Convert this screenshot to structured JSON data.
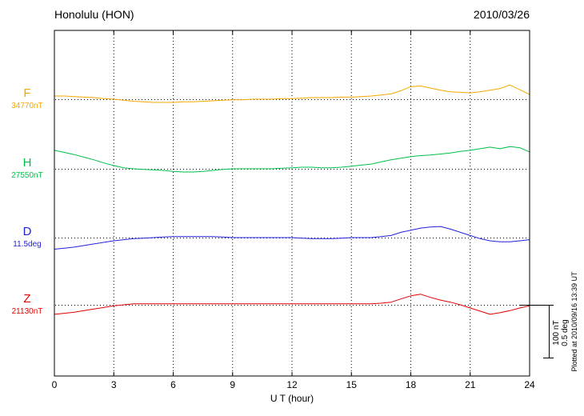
{
  "header": {
    "title": "Honolulu (HON)",
    "date": "2010/03/26"
  },
  "axis": {
    "xlabel": "U T (hour)",
    "ticks": [
      "0",
      "3",
      "6",
      "9",
      "12",
      "15",
      "18",
      "21",
      "24"
    ]
  },
  "channels": [
    {
      "name": "F",
      "value_label": "34770nT",
      "color": "#f5a800"
    },
    {
      "name": "H",
      "value_label": "27550nT",
      "color": "#00c04a"
    },
    {
      "name": "D",
      "value_label": "11.5deg",
      "color": "#2222dd"
    },
    {
      "name": "Z",
      "value_label": "21130nT",
      "color": "#e00000"
    }
  ],
  "scalebar": {
    "label_nT": "100 nT",
    "label_deg": "0.5 deg"
  },
  "footer": {
    "plotted_at": "Plotted at 2010/09/16 13:39 UT"
  },
  "chart_data": {
    "type": "line",
    "title": "Honolulu (HON) magnetogram 2010/03/26",
    "xlabel": "U T (hour)",
    "x_range": [
      0,
      24
    ],
    "x_tick_hours": [
      0,
      3,
      6,
      9,
      12,
      15,
      18,
      21,
      24
    ],
    "x_step_hours": 0.5,
    "scale_reference": {
      "nT_per_bar": 100,
      "deg_per_bar": 0.5
    },
    "series": [
      {
        "name": "F",
        "unit": "nT",
        "baseline_value": 34770,
        "color": "#f5a800",
        "offsets": [
          6,
          6,
          5,
          4,
          3,
          1,
          0,
          -2,
          -4,
          -5,
          -6,
          -6,
          -6,
          -5,
          -5,
          -4,
          -3,
          -2,
          -1,
          -1,
          0,
          0,
          0,
          1,
          1,
          2,
          3,
          3,
          3,
          4,
          4,
          5,
          6,
          8,
          10,
          16,
          24,
          25,
          21,
          17,
          14,
          13,
          12,
          14,
          17,
          20,
          27,
          18,
          9
        ]
      },
      {
        "name": "H",
        "unit": "nT",
        "baseline_value": 27550,
        "color": "#00c04a",
        "offsets": [
          35,
          31,
          27,
          22,
          17,
          11,
          6,
          2,
          0,
          -1,
          -2,
          -3,
          -5,
          -6,
          -6,
          -5,
          -3,
          -1,
          0,
          0,
          0,
          0,
          0,
          1,
          2,
          3,
          3,
          2,
          2,
          3,
          5,
          7,
          9,
          13,
          17,
          20,
          23,
          25,
          26,
          28,
          30,
          33,
          35,
          38,
          41,
          38,
          42,
          40,
          32
        ]
      },
      {
        "name": "D",
        "unit": "deg",
        "baseline_value": 11.5,
        "color": "#2222dd",
        "offsets": [
          -0.11,
          -0.1,
          -0.09,
          -0.075,
          -0.06,
          -0.045,
          -0.03,
          -0.02,
          -0.01,
          -0.005,
          0,
          0.005,
          0.01,
          0.01,
          0.01,
          0.01,
          0.01,
          0.005,
          0,
          0,
          0,
          0,
          0,
          0,
          0,
          -0.005,
          -0.01,
          -0.01,
          -0.01,
          -0.005,
          0,
          0,
          0,
          0.01,
          0.02,
          0.05,
          0.07,
          0.09,
          0.1,
          0.105,
          0.08,
          0.05,
          0.02,
          -0.01,
          -0.03,
          -0.04,
          -0.04,
          -0.03,
          -0.02
        ]
      },
      {
        "name": "Z",
        "unit": "nT",
        "baseline_value": 21130,
        "color": "#e00000",
        "offsets": [
          -18,
          -16,
          -14,
          -11,
          -8,
          -5,
          -2,
          0,
          2,
          2,
          2,
          2,
          2,
          2,
          2,
          2,
          2,
          2,
          2,
          2,
          2,
          2,
          2,
          2,
          2,
          2,
          2,
          2,
          2,
          2,
          2,
          2,
          2,
          3,
          5,
          11,
          17,
          20,
          14,
          9,
          5,
          0,
          -6,
          -12,
          -18,
          -15,
          -11,
          -6,
          -2
        ]
      }
    ]
  }
}
